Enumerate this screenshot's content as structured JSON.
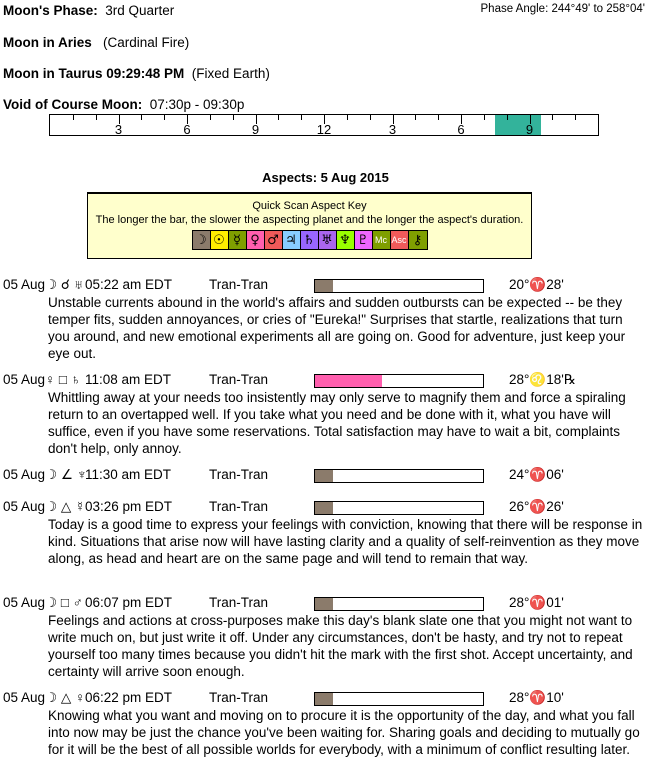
{
  "header": {
    "phase_label": "Moon's Phase:",
    "phase_value": "3rd Quarter",
    "phase_angle": "Phase Angle:  244°49' to 258°04'",
    "moon_sign_label": "Moon in Aries",
    "moon_sign_value": "(Cardinal Fire)",
    "moon_ingress_label": "Moon in Taurus 09:29:48 PM",
    "moon_ingress_value": "(Fixed Earth)",
    "void_label": "Void of Course Moon:",
    "void_value": "07:30p -  09:30p"
  },
  "void_timeline": {
    "tick_labels": [
      "3",
      "6",
      "9",
      "12",
      "3",
      "6",
      "9"
    ],
    "void_start_hour": 19.5,
    "void_end_hour": 21.5,
    "fill_color": "#33b39b"
  },
  "aspects_title": "Aspects: 5 Aug 2015",
  "key": {
    "title": "Quick Scan Aspect Key",
    "description": "The longer the bar, the slower the aspecting planet and the longer the aspect's duration.",
    "glyphs": [
      {
        "name": "moon",
        "symbol": "☽",
        "color": "#8b7b6b"
      },
      {
        "name": "sun",
        "symbol": "☉",
        "color": "#ffee00"
      },
      {
        "name": "mercury",
        "symbol": "☿",
        "color": "#7f9f00"
      },
      {
        "name": "venus",
        "symbol": "♀",
        "color": "#ff5fae"
      },
      {
        "name": "mars",
        "symbol": "♂",
        "color": "#f05a5a"
      },
      {
        "name": "jupiter",
        "symbol": "♃",
        "color": "#88ccff"
      },
      {
        "name": "saturn",
        "symbol": "♄",
        "color": "#9966ff"
      },
      {
        "name": "uranus",
        "symbol": "♅",
        "color": "#aa66ee"
      },
      {
        "name": "neptune",
        "symbol": "♆",
        "color": "#99ff00"
      },
      {
        "name": "pluto",
        "symbol": "♇",
        "color": "#ee66ff"
      },
      {
        "name": "mc",
        "symbol": "Mc",
        "color": "#7f9f00"
      },
      {
        "name": "asc",
        "symbol": "Asc",
        "color": "#f05a5a"
      },
      {
        "name": "chiron",
        "symbol": "⚷",
        "color": "#7f9f00"
      }
    ]
  },
  "aspects": [
    {
      "date": "05 Aug",
      "symbols": "☽ ☌ ♅",
      "time": "05:22 am EDT",
      "type": "Tran-Tran",
      "bar_fraction": 0.11,
      "bar_color": "#8b7b6b",
      "position": "20°♈28'",
      "text": "Unstable currents abound in the world's affairs and sudden outbursts can be expected -- be they temper fits, sudden annoyances, or cries of \"Eureka!\" Surprises that startle, realizations that turn you around, and new emotional experiments all are going on. Good for adventure, just keep your eye out."
    },
    {
      "date": "05 Aug",
      "symbols": "♀ □ ♄",
      "time": "11:08 am EDT",
      "type": "Tran-Tran",
      "bar_fraction": 0.4,
      "bar_color": "#ff5fae",
      "position": "28°♌18'℞",
      "text": "Whittling away at your needs too insistently may only serve to magnify them and force a spiraling return to an overtapped well. If you take what you need and be done with it, what you have will suffice, even if you have some reservations. Total satisfaction may have to wait a bit, complaints don't help, only annoy."
    },
    {
      "date": "05 Aug",
      "symbols": "☽ ∠ ♆",
      "time": "11:30 am EDT",
      "type": "Tran-Tran",
      "bar_fraction": 0.11,
      "bar_color": "#8b7b6b",
      "position": "24°♈06'",
      "text": ""
    },
    {
      "date": "05 Aug",
      "symbols": "☽ △ ☿",
      "time": "03:26 pm EDT",
      "type": "Tran-Tran",
      "bar_fraction": 0.11,
      "bar_color": "#8b7b6b",
      "position": "26°♈26'",
      "text": "Today is a good time to express your feelings with conviction, knowing that there will be response in kind. Situations that arise now will have lasting clarity and a quality of self-reinvention as they move along, as head and heart are on the same page and will tend to remain that way."
    },
    {
      "date": "05 Aug",
      "symbols": "☽ □ ♂",
      "time": "06:07 pm EDT",
      "type": "Tran-Tran",
      "bar_fraction": 0.11,
      "bar_color": "#8b7b6b",
      "position": "28°♈01'",
      "text": "Feelings and actions at cross-purposes make this day's blank slate one that you might not want to write much on, but just write it off. Under any circumstances, don't be hasty, and try not to repeat yourself too many times because you didn't hit the mark with the first shot. Accept uncertainty, and certainty will arrive soon enough."
    },
    {
      "date": "05 Aug",
      "symbols": "☽ △ ♀",
      "time": "06:22 pm EDT",
      "type": "Tran-Tran",
      "bar_fraction": 0.11,
      "bar_color": "#8b7b6b",
      "position": "28°♈10'",
      "text": "Knowing what you want and moving on to procure it is the opportunity of the day, and what you fall into now may be just the chance you've been waiting for. Sharing goals and deciding to mutually go for it will be the best of all possible worlds for everybody, with a minimum of conflict resulting later."
    }
  ]
}
